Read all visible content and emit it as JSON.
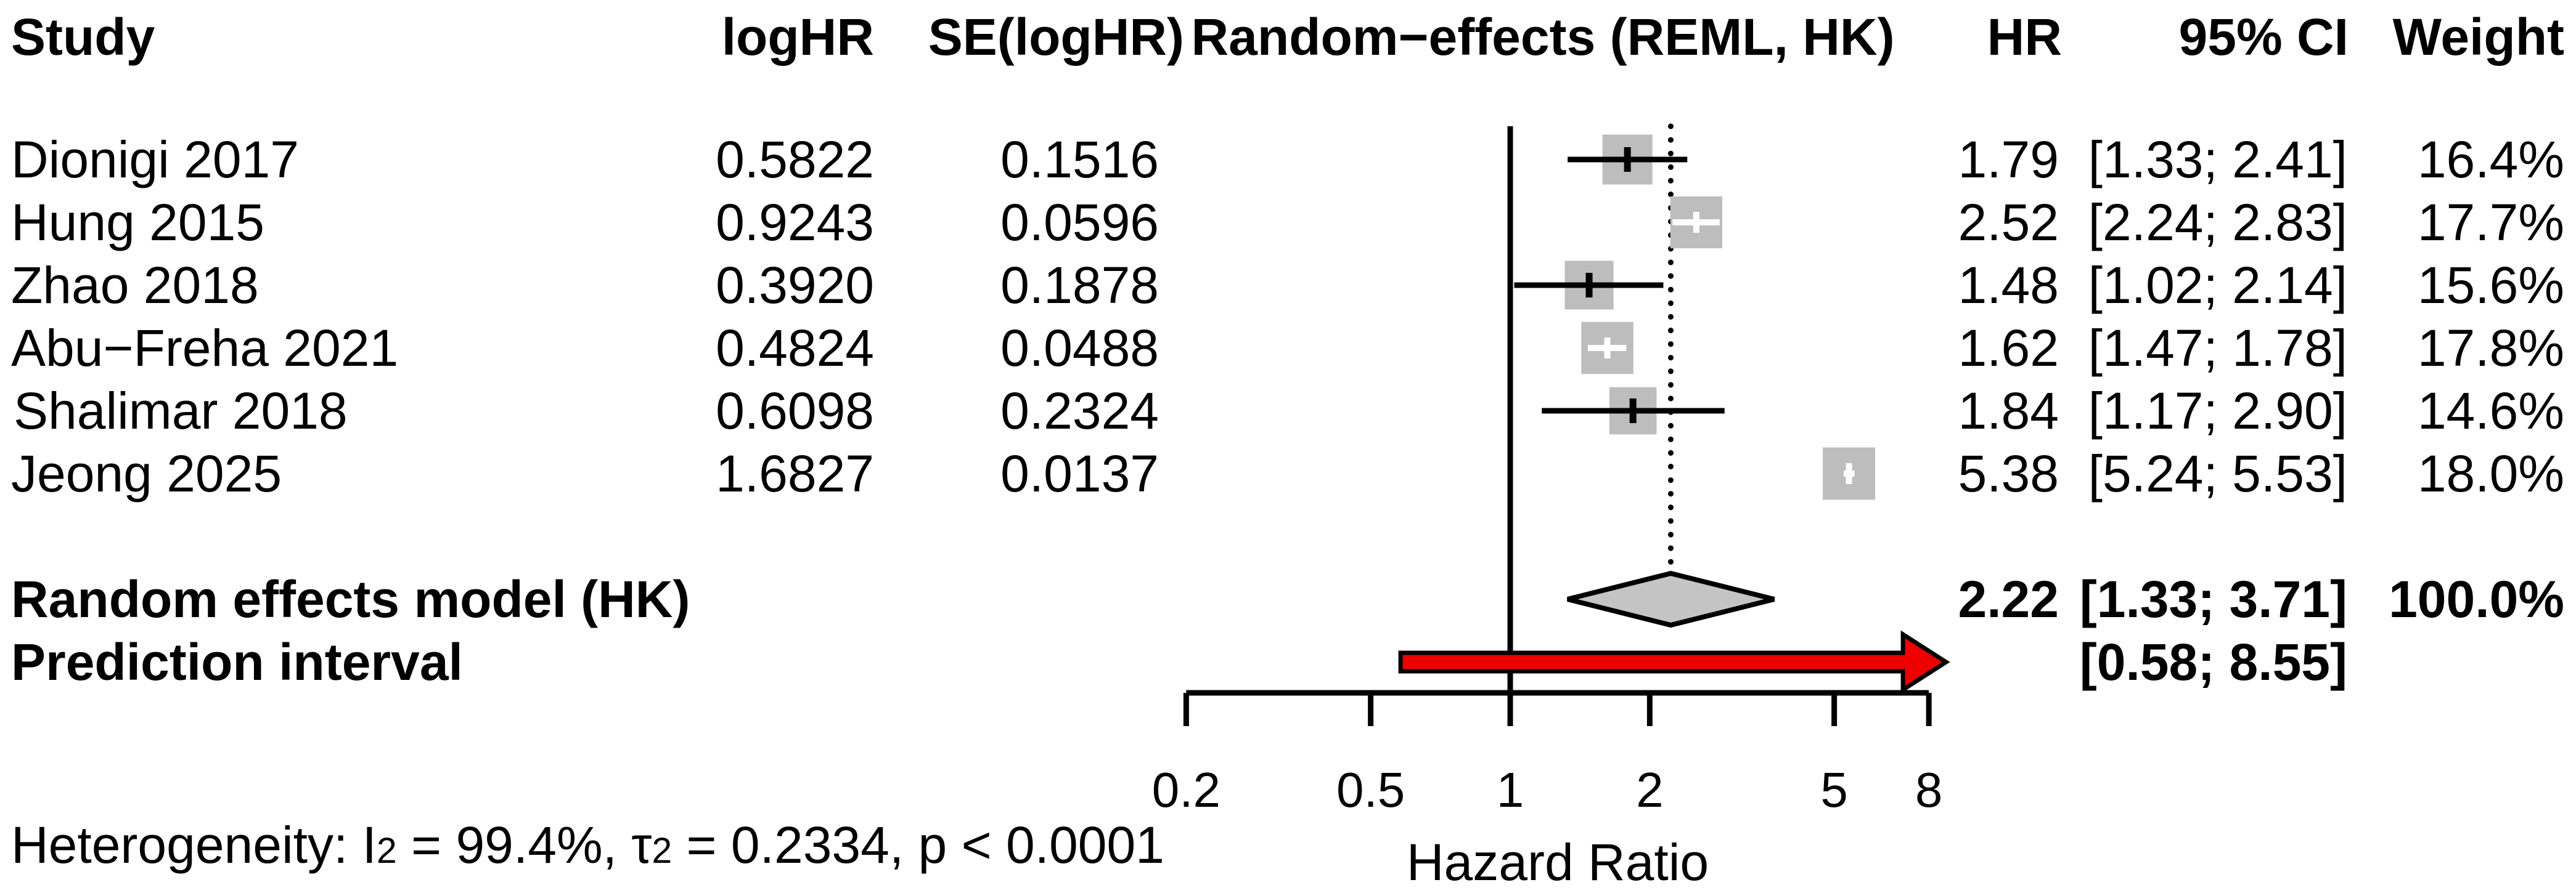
{
  "columns": {
    "study": "Study",
    "loghr": "logHR",
    "se": "SE(logHR)",
    "plot": "Random−effects (REML, HK)",
    "hr": "HR",
    "ci": "95% CI",
    "weight": "Weight"
  },
  "chart_data": {
    "type": "forest",
    "x_scale": "log",
    "axis": {
      "ticks": [
        0.2,
        0.5,
        1,
        2,
        5,
        8
      ],
      "tick_labels": [
        "0.2",
        "0.5",
        "1",
        "2",
        "5",
        "8"
      ],
      "label": "Hazard Ratio",
      "ref_line": 1,
      "pooled_line": 2.22,
      "xlim": [
        0.2,
        8
      ]
    },
    "studies": [
      {
        "name": "Dionigi 2017",
        "loghr": "0.5822",
        "se": "0.1516",
        "hr": 1.79,
        "hr_text": "1.79",
        "lower": 1.33,
        "upper": 2.41,
        "ci_text": "[1.33; 2.41]",
        "weight": 16.4,
        "weight_text": "16.4%"
      },
      {
        "name": "Hung 2015",
        "loghr": "0.9243",
        "se": "0.0596",
        "hr": 2.52,
        "hr_text": "2.52",
        "lower": 2.24,
        "upper": 2.83,
        "ci_text": "[2.24; 2.83]",
        "weight": 17.7,
        "weight_text": "17.7%"
      },
      {
        "name": "Zhao 2018",
        "loghr": "0.3920",
        "se": "0.1878",
        "hr": 1.48,
        "hr_text": "1.48",
        "lower": 1.02,
        "upper": 2.14,
        "ci_text": "[1.02; 2.14]",
        "weight": 15.6,
        "weight_text": "15.6%"
      },
      {
        "name": "Abu−Freha 2021",
        "loghr": "0.4824",
        "se": "0.0488",
        "hr": 1.62,
        "hr_text": "1.62",
        "lower": 1.47,
        "upper": 1.78,
        "ci_text": "[1.47; 1.78]",
        "weight": 17.8,
        "weight_text": "17.8%"
      },
      {
        "name": "Shalimar 2018",
        "loghr": "0.6098",
        "se": "0.2324",
        "hr": 1.84,
        "hr_text": "1.84",
        "lower": 1.17,
        "upper": 2.9,
        "ci_text": "[1.17; 2.90]",
        "weight": 14.6,
        "weight_text": "14.6%"
      },
      {
        "name": "Jeong 2025",
        "loghr": "1.6827",
        "se": "0.0137",
        "hr": 5.38,
        "hr_text": "5.38",
        "lower": 5.24,
        "upper": 5.53,
        "ci_text": "[5.24; 5.53]",
        "weight": 18.0,
        "weight_text": "18.0%"
      }
    ],
    "summary": {
      "label": "Random effects model (HK)",
      "hr": 2.22,
      "hr_text": "2.22",
      "lower": 1.33,
      "upper": 3.71,
      "ci_text": "[1.33; 3.71]",
      "weight_text": "100.0%"
    },
    "prediction": {
      "label": "Prediction interval",
      "lower": 0.58,
      "upper": 8.55,
      "ci_text": "[0.58; 8.55]"
    },
    "heterogeneity": {
      "prefix": "Heterogeneity: I",
      "sup1": "2",
      "mid": " = 99.4%, τ",
      "sup2": "2",
      "suffix": " = 0.2334, p < 0.0001"
    },
    "colors": {
      "square": "#bdbdbd",
      "diamond_fill": "#c4c4c4",
      "arrow_fill": "#ee0000",
      "line": "#000000"
    }
  }
}
